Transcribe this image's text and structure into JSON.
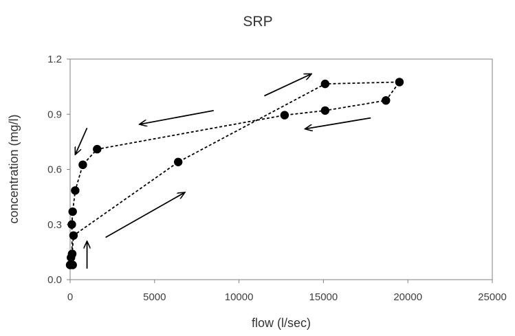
{
  "chart_data": {
    "type": "scatter",
    "title": "SRP",
    "xlabel": "flow (l/sec)",
    "ylabel": "concentration (mg/l)",
    "xlim": [
      0,
      25000
    ],
    "ylim": [
      0,
      1.2
    ],
    "x_ticks": [
      0,
      5000,
      10000,
      15000,
      20000,
      25000
    ],
    "y_ticks": [
      0.0,
      0.3,
      0.6,
      0.9,
      1.2
    ],
    "x_tick_labels": [
      "0",
      "5000",
      "10000",
      "15000",
      "20000",
      "25000"
    ],
    "y_tick_labels": [
      "0.0",
      "0.3",
      "0.6",
      "0.9",
      "1.2"
    ],
    "grid": false,
    "legend": false,
    "line_style": "dashed",
    "marker": "filled-circle",
    "colors": {
      "series": "#000000",
      "axis": "#7f7f7f",
      "text": "#3f3f3f"
    },
    "series": [
      {
        "x": [
          0,
          50,
          120,
          200,
          6400,
          15100,
          19500,
          18700,
          15100,
          12700,
          1600,
          750,
          300,
          150,
          100,
          120,
          150
        ],
        "y": [
          0.08,
          0.12,
          0.14,
          0.24,
          0.64,
          1.065,
          1.075,
          0.975,
          0.92,
          0.895,
          0.71,
          0.625,
          0.485,
          0.37,
          0.3,
          0.14,
          0.08
        ]
      }
    ],
    "annotations": [
      {
        "type": "arrow",
        "from": [
          1000,
          0.06
        ],
        "to": [
          1000,
          0.21
        ]
      },
      {
        "type": "arrow",
        "from": [
          2100,
          0.23
        ],
        "to": [
          6800,
          0.475
        ]
      },
      {
        "type": "arrow",
        "from": [
          11500,
          1.0
        ],
        "to": [
          14300,
          1.12
        ]
      },
      {
        "type": "arrow",
        "from": [
          17800,
          0.88
        ],
        "to": [
          13900,
          0.82
        ]
      },
      {
        "type": "arrow",
        "from": [
          8500,
          0.92
        ],
        "to": [
          4100,
          0.845
        ]
      },
      {
        "type": "arrow",
        "from": [
          1000,
          0.825
        ],
        "to": [
          300,
          0.68
        ]
      }
    ]
  }
}
